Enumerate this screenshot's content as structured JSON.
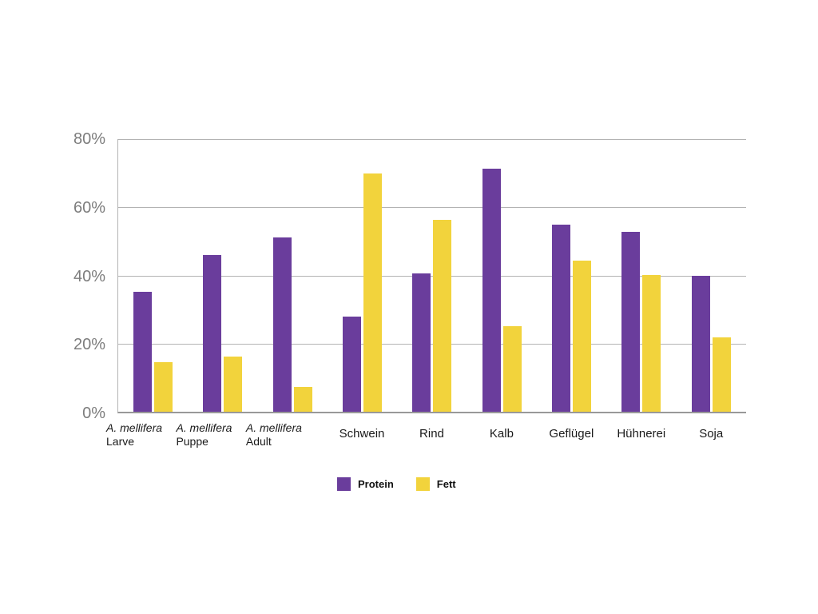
{
  "chart_data": {
    "type": "bar",
    "title": "",
    "xlabel": "",
    "ylabel": "",
    "ylim": [
      0,
      80
    ],
    "grid": true,
    "legend_position": "bottom-center",
    "categories": [
      {
        "italic": "A. mellifera",
        "label": "Larve"
      },
      {
        "italic": "A. mellifera",
        "label": "Puppe"
      },
      {
        "italic": "A. mellifera",
        "label": "Adult"
      },
      {
        "label": "Schwein"
      },
      {
        "label": "Rind"
      },
      {
        "label": "Kalb"
      },
      {
        "label": "Geflügel"
      },
      {
        "label": "Hühnerei"
      },
      {
        "label": "Soja"
      }
    ],
    "series": [
      {
        "name": "Protein",
        "color": "#6A3D9C",
        "values": [
          35.3,
          46.0,
          51.1,
          28.0,
          40.5,
          71.3,
          54.8,
          52.9,
          40.0
        ]
      },
      {
        "name": "Fett",
        "color": "#F2D33C",
        "values": [
          14.6,
          16.1,
          7.2,
          70.0,
          56.3,
          25.0,
          44.4,
          40.1,
          21.9
        ]
      }
    ],
    "yticks": [
      {
        "value": 0,
        "label": "0%"
      },
      {
        "value": 20,
        "label": "20%"
      },
      {
        "value": 40,
        "label": "40%"
      },
      {
        "value": 60,
        "label": "60%"
      },
      {
        "value": 80,
        "label": "80%"
      }
    ],
    "colors": {
      "gridline": "#b3b3b3",
      "axis": "#999999",
      "tick_label": "#7d7d7d",
      "category_label": "#1a1a1a"
    }
  }
}
